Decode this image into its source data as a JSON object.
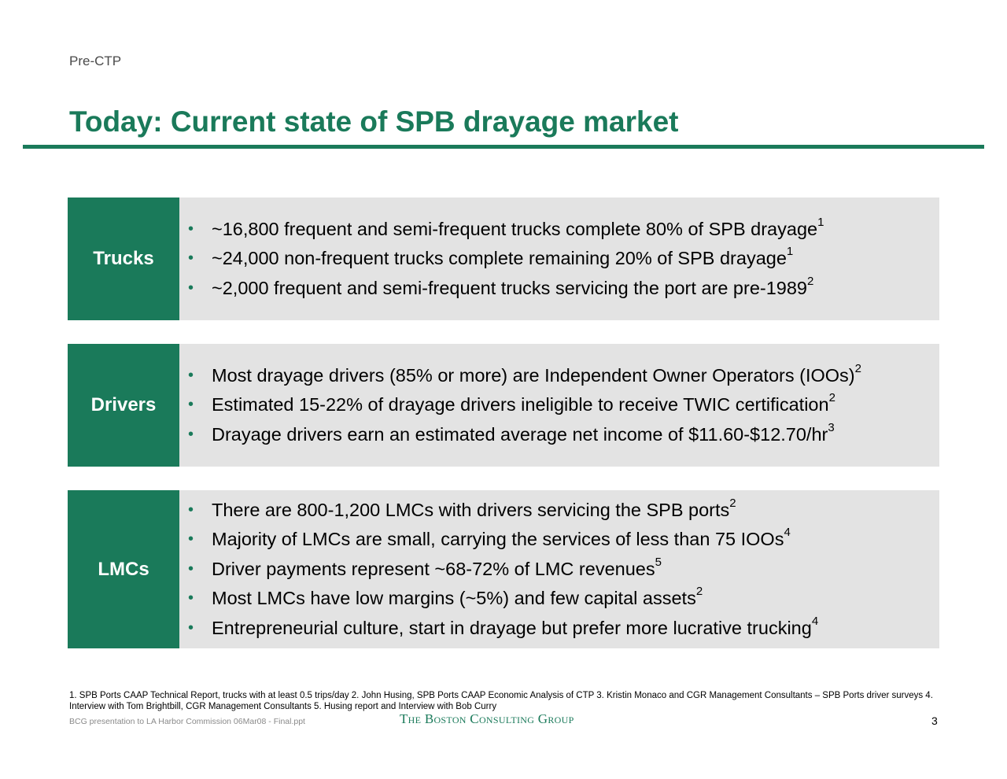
{
  "header": {
    "tag": "Pre-CTP",
    "title": "Today: Current state of SPB drayage market"
  },
  "colors": {
    "accent": "#1a7a5a",
    "panel": "#e3e3e3"
  },
  "sections": [
    {
      "label": "Trucks",
      "items": [
        {
          "text": "~16,800 frequent and semi-frequent trucks complete 80% of SPB drayage",
          "ref": "1"
        },
        {
          "text": "~24,000 non-frequent trucks complete remaining 20% of SPB drayage",
          "ref": "1"
        },
        {
          "text": "~2,000 frequent and semi-frequent trucks servicing the port are pre-1989",
          "ref": "2"
        }
      ]
    },
    {
      "label": "Drivers",
      "items": [
        {
          "text": "Most drayage drivers (85% or more) are Independent Owner Operators (IOOs)",
          "ref": "2"
        },
        {
          "text": "Estimated 15-22% of drayage drivers ineligible to receive TWIC certification",
          "ref": "2"
        },
        {
          "text": "Drayage drivers earn an estimated average net income of $11.60-$12.70/hr",
          "ref": "3"
        }
      ]
    },
    {
      "label": "LMCs",
      "items": [
        {
          "text": "There are 800-1,200 LMCs with drivers servicing the SPB ports",
          "ref": "2"
        },
        {
          "text": "Majority of LMCs are small, carrying the services of less than 75 IOOs",
          "ref": "4"
        },
        {
          "text": "Driver payments represent ~68-72% of LMC revenues",
          "ref": "5"
        },
        {
          "text": "Most LMCs have low margins (~5%) and few capital assets",
          "ref": "2"
        },
        {
          "text": "Entrepreneurial culture, start in drayage but prefer more lucrative trucking",
          "ref": "4"
        }
      ]
    }
  ],
  "footer": {
    "footnotes": "1. SPB Ports CAAP Technical Report, trucks with at least 0.5 trips/day  2. John Husing, SPB Ports CAAP Economic Analysis of CTP  3. Kristin Monaco and CGR Management Consultants – SPB Ports driver surveys 4. Interview with Tom Brightbill, CGR Management Consultants 5. Husing report and Interview with Bob Curry",
    "filename": "BCG presentation to LA Harbor Commission 06Mar08 - Final.ppt",
    "logo_text": "The Boston Consulting Group",
    "page_number": "3"
  }
}
